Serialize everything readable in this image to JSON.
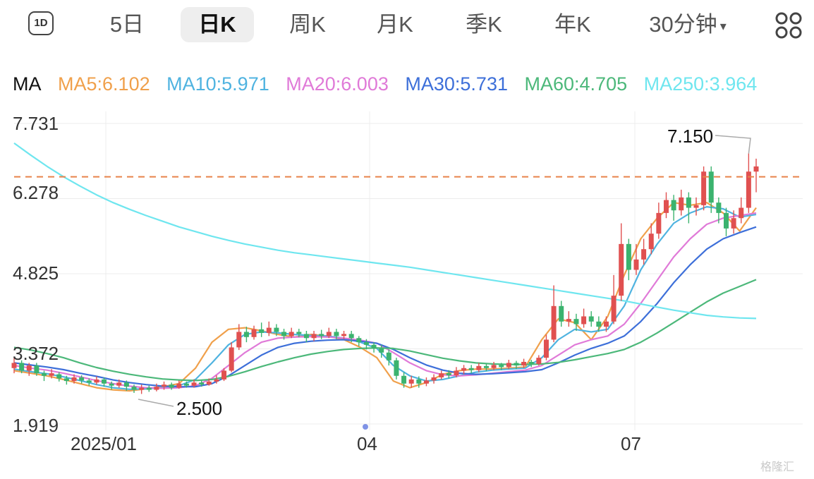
{
  "tabs": {
    "day1": "1D",
    "five_day": "5日",
    "daily_k": "日K",
    "weekly_k": "周K",
    "monthly_k": "月K",
    "quarterly_k": "季K",
    "yearly_k": "年K",
    "min30": "30分钟",
    "min30_caret": "▾",
    "active": "日K"
  },
  "ma_legend": {
    "label": "MA",
    "items": [
      {
        "text": "MA5:6.102",
        "color": "#f0a04b"
      },
      {
        "text": "MA10:5.971",
        "color": "#4fb3e0"
      },
      {
        "text": "MA20:6.003",
        "color": "#e07ad8"
      },
      {
        "text": "MA30:5.731",
        "color": "#3d6fd9"
      },
      {
        "text": "MA60:4.705",
        "color": "#4cb87a"
      },
      {
        "text": "MA250:3.964",
        "color": "#6fe6ef"
      }
    ]
  },
  "watermark": "格隆汇",
  "chart_data": {
    "type": "candlestick",
    "y_ticks": [
      "7.731",
      "6.278",
      "4.825",
      "3.372",
      "1.919"
    ],
    "ylim": [
      1.919,
      7.731
    ],
    "x_ticks": [
      "2025/01",
      "04",
      "07"
    ],
    "annotations": {
      "high": "7.150",
      "low": "2.500"
    },
    "current_price_line": 6.7,
    "colors": {
      "up": "#e05050",
      "down": "#3bb36e",
      "dash": "#e8824a"
    },
    "ma_series": [
      {
        "name": "MA5",
        "color": "#f0a04b",
        "values": [
          2.95,
          2.9,
          2.85,
          2.78,
          2.7,
          2.62,
          2.58,
          2.56,
          2.6,
          2.64,
          2.7,
          3.0,
          3.5,
          3.75,
          3.78,
          3.72,
          3.65,
          3.6,
          3.65,
          3.62,
          3.55,
          3.4,
          3.2,
          2.75,
          2.62,
          2.72,
          2.88,
          2.95,
          2.98,
          2.98,
          3.0,
          3.02,
          3.55,
          3.95,
          3.88,
          3.55,
          4.0,
          4.8,
          5.5,
          5.9,
          6.2,
          6.15,
          6.2,
          6.0,
          5.65,
          6.1
        ]
      },
      {
        "name": "MA10",
        "color": "#4fb3e0",
        "values": [
          2.98,
          2.93,
          2.89,
          2.83,
          2.76,
          2.68,
          2.62,
          2.59,
          2.6,
          2.62,
          2.66,
          2.78,
          3.1,
          3.45,
          3.65,
          3.7,
          3.68,
          3.65,
          3.63,
          3.62,
          3.58,
          3.5,
          3.38,
          3.05,
          2.85,
          2.75,
          2.78,
          2.85,
          2.92,
          2.96,
          2.98,
          3.0,
          3.2,
          3.55,
          3.75,
          3.7,
          3.75,
          4.2,
          4.9,
          5.4,
          5.8,
          6.0,
          6.12,
          6.08,
          5.92,
          5.97
        ]
      },
      {
        "name": "MA20",
        "color": "#e07ad8",
        "values": [
          3.05,
          3.0,
          2.96,
          2.9,
          2.83,
          2.76,
          2.7,
          2.65,
          2.62,
          2.61,
          2.62,
          2.66,
          2.8,
          3.05,
          3.3,
          3.5,
          3.58,
          3.6,
          3.61,
          3.6,
          3.58,
          3.54,
          3.48,
          3.3,
          3.1,
          2.95,
          2.87,
          2.85,
          2.87,
          2.9,
          2.93,
          2.96,
          3.05,
          3.25,
          3.45,
          3.55,
          3.62,
          3.85,
          4.25,
          4.7,
          5.15,
          5.5,
          5.78,
          5.9,
          5.95,
          6.0
        ]
      },
      {
        "name": "MA30",
        "color": "#3d6fd9",
        "values": [
          3.1,
          3.06,
          3.02,
          2.97,
          2.9,
          2.84,
          2.77,
          2.72,
          2.68,
          2.65,
          2.64,
          2.64,
          2.7,
          2.85,
          3.05,
          3.25,
          3.4,
          3.48,
          3.52,
          3.54,
          3.55,
          3.52,
          3.48,
          3.36,
          3.2,
          3.06,
          2.96,
          2.9,
          2.88,
          2.89,
          2.91,
          2.93,
          2.97,
          3.1,
          3.25,
          3.38,
          3.48,
          3.62,
          3.9,
          4.25,
          4.65,
          5.0,
          5.3,
          5.5,
          5.62,
          5.73
        ]
      },
      {
        "name": "MA60",
        "color": "#4cb87a",
        "values": [
          3.4,
          3.35,
          3.28,
          3.2,
          3.1,
          3.01,
          2.94,
          2.88,
          2.83,
          2.79,
          2.77,
          2.76,
          2.78,
          2.84,
          2.93,
          3.03,
          3.12,
          3.2,
          3.27,
          3.32,
          3.36,
          3.38,
          3.39,
          3.38,
          3.33,
          3.26,
          3.19,
          3.14,
          3.1,
          3.08,
          3.07,
          3.07,
          3.08,
          3.11,
          3.16,
          3.22,
          3.28,
          3.36,
          3.5,
          3.68,
          3.88,
          4.08,
          4.28,
          4.45,
          4.58,
          4.71
        ]
      },
      {
        "name": "MA250",
        "color": "#6fe6ef",
        "values": [
          7.35,
          7.12,
          6.9,
          6.7,
          6.52,
          6.35,
          6.2,
          6.07,
          5.95,
          5.84,
          5.73,
          5.64,
          5.55,
          5.47,
          5.4,
          5.34,
          5.28,
          5.23,
          5.19,
          5.15,
          5.11,
          5.07,
          5.03,
          4.99,
          4.95,
          4.9,
          4.85,
          4.8,
          4.75,
          4.7,
          4.65,
          4.6,
          4.55,
          4.5,
          4.45,
          4.4,
          4.35,
          4.3,
          4.24,
          4.18,
          4.12,
          4.07,
          4.02,
          3.99,
          3.97,
          3.96
        ]
      }
    ],
    "candles": [
      [
        3.0,
        3.1,
        3.2,
        2.9
      ],
      [
        3.1,
        2.95,
        3.15,
        2.9
      ],
      [
        2.95,
        3.05,
        3.1,
        2.85
      ],
      [
        3.05,
        2.9,
        3.1,
        2.85
      ],
      [
        2.9,
        2.85,
        2.95,
        2.75
      ],
      [
        2.85,
        2.9,
        2.98,
        2.8
      ],
      [
        2.88,
        2.8,
        2.92,
        2.74
      ],
      [
        2.8,
        2.75,
        2.85,
        2.68
      ],
      [
        2.75,
        2.82,
        2.88,
        2.7
      ],
      [
        2.82,
        2.76,
        2.86,
        2.7
      ],
      [
        2.76,
        2.72,
        2.8,
        2.66
      ],
      [
        2.72,
        2.78,
        2.84,
        2.68
      ],
      [
        2.78,
        2.7,
        2.82,
        2.64
      ],
      [
        2.7,
        2.66,
        2.74,
        2.58
      ],
      [
        2.66,
        2.72,
        2.78,
        2.62
      ],
      [
        2.72,
        2.64,
        2.76,
        2.56
      ],
      [
        2.64,
        2.58,
        2.68,
        2.52
      ],
      [
        2.58,
        2.62,
        2.68,
        2.5
      ],
      [
        2.62,
        2.58,
        2.66,
        2.54
      ],
      [
        2.58,
        2.64,
        2.7,
        2.55
      ],
      [
        2.64,
        2.68,
        2.74,
        2.58
      ],
      [
        2.68,
        2.62,
        2.72,
        2.58
      ],
      [
        2.62,
        2.7,
        2.76,
        2.6
      ],
      [
        2.7,
        2.66,
        2.74,
        2.62
      ],
      [
        2.66,
        2.72,
        2.78,
        2.62
      ],
      [
        2.72,
        2.68,
        2.76,
        2.64
      ],
      [
        2.68,
        2.74,
        2.8,
        2.66
      ],
      [
        2.74,
        2.78,
        2.86,
        2.7
      ],
      [
        2.78,
        2.95,
        3.0,
        2.75
      ],
      [
        2.95,
        3.4,
        3.5,
        2.92
      ],
      [
        3.4,
        3.7,
        3.85,
        3.35
      ],
      [
        3.7,
        3.6,
        3.8,
        3.5
      ],
      [
        3.6,
        3.75,
        3.82,
        3.55
      ],
      [
        3.75,
        3.68,
        3.88,
        3.6
      ],
      [
        3.68,
        3.78,
        3.9,
        3.62
      ],
      [
        3.78,
        3.7,
        3.85,
        3.62
      ],
      [
        3.7,
        3.62,
        3.76,
        3.55
      ],
      [
        3.62,
        3.7,
        3.78,
        3.58
      ],
      [
        3.7,
        3.66,
        3.76,
        3.6
      ],
      [
        3.66,
        3.58,
        3.72,
        3.5
      ],
      [
        3.58,
        3.66,
        3.72,
        3.52
      ],
      [
        3.66,
        3.62,
        3.74,
        3.56
      ],
      [
        3.62,
        3.7,
        3.78,
        3.58
      ],
      [
        3.7,
        3.62,
        3.76,
        3.56
      ],
      [
        3.62,
        3.66,
        3.72,
        3.56
      ],
      [
        3.66,
        3.58,
        3.72,
        3.5
      ],
      [
        3.58,
        3.5,
        3.62,
        3.42
      ],
      [
        3.5,
        3.45,
        3.56,
        3.36
      ],
      [
        3.45,
        3.38,
        3.5,
        3.3
      ],
      [
        3.38,
        3.3,
        3.45,
        3.2
      ],
      [
        3.3,
        3.15,
        3.36,
        3.05
      ],
      [
        3.15,
        2.85,
        3.2,
        2.78
      ],
      [
        2.85,
        2.7,
        2.92,
        2.62
      ],
      [
        2.7,
        2.78,
        2.85,
        2.62
      ],
      [
        2.78,
        2.7,
        2.84,
        2.62
      ],
      [
        2.7,
        2.76,
        2.82,
        2.65
      ],
      [
        2.76,
        2.82,
        2.88,
        2.7
      ],
      [
        2.82,
        2.9,
        2.95,
        2.78
      ],
      [
        2.9,
        2.86,
        2.96,
        2.8
      ],
      [
        2.86,
        2.95,
        3.02,
        2.82
      ],
      [
        2.95,
        3.0,
        3.06,
        2.88
      ],
      [
        3.0,
        2.96,
        3.06,
        2.9
      ],
      [
        2.96,
        3.04,
        3.1,
        2.92
      ],
      [
        3.04,
        3.0,
        3.08,
        2.94
      ],
      [
        3.0,
        3.06,
        3.12,
        2.96
      ],
      [
        3.06,
        3.02,
        3.1,
        2.96
      ],
      [
        3.02,
        3.1,
        3.16,
        2.98
      ],
      [
        3.1,
        3.05,
        3.14,
        2.98
      ],
      [
        3.05,
        3.12,
        3.18,
        3.0
      ],
      [
        3.12,
        3.08,
        3.16,
        3.02
      ],
      [
        3.08,
        3.2,
        3.25,
        3.05
      ],
      [
        3.2,
        3.55,
        3.65,
        3.15
      ],
      [
        3.55,
        4.2,
        4.6,
        3.5
      ],
      [
        4.2,
        3.9,
        4.3,
        3.8
      ],
      [
        3.9,
        3.95,
        4.1,
        3.8
      ],
      [
        3.95,
        3.85,
        4.05,
        3.72
      ],
      [
        3.85,
        4.0,
        4.15,
        3.78
      ],
      [
        4.0,
        3.9,
        4.1,
        3.8
      ],
      [
        3.9,
        3.8,
        4.0,
        3.7
      ],
      [
        3.8,
        3.9,
        4.0,
        3.7
      ],
      [
        3.9,
        4.4,
        4.8,
        3.85
      ],
      [
        4.4,
        5.4,
        5.8,
        4.3
      ],
      [
        5.4,
        4.9,
        5.5,
        4.7
      ],
      [
        4.9,
        5.1,
        5.4,
        4.8
      ],
      [
        5.1,
        5.3,
        5.5,
        5.0
      ],
      [
        5.3,
        5.6,
        5.8,
        5.2
      ],
      [
        5.6,
        6.0,
        6.2,
        5.5
      ],
      [
        6.0,
        6.25,
        6.4,
        5.9
      ],
      [
        6.25,
        6.05,
        6.35,
        5.85
      ],
      [
        6.05,
        6.3,
        6.45,
        5.95
      ],
      [
        6.3,
        6.1,
        6.4,
        5.8
      ],
      [
        6.1,
        6.15,
        6.3,
        5.95
      ],
      [
        6.15,
        6.8,
        6.9,
        6.05
      ],
      [
        6.8,
        6.2,
        6.9,
        6.0
      ],
      [
        6.2,
        6.0,
        6.3,
        5.8
      ],
      [
        6.0,
        5.7,
        6.1,
        5.55
      ],
      [
        5.7,
        5.9,
        6.05,
        5.6
      ],
      [
        5.9,
        6.1,
        6.3,
        5.8
      ],
      [
        6.1,
        6.8,
        7.15,
        6.0
      ],
      [
        6.8,
        6.9,
        7.05,
        6.4
      ]
    ]
  }
}
